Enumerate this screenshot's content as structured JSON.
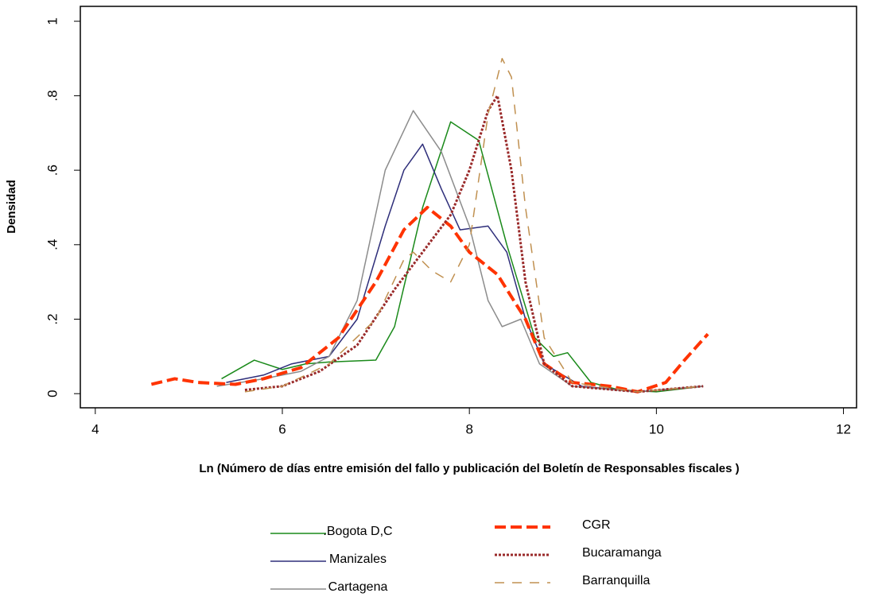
{
  "chart_data": {
    "type": "line",
    "x_label": "Ln (Número de días entre emisión del fallo y publicación del Boletín de Responsables fiscales )",
    "y_label": "Densidad",
    "xlim": [
      3.84,
      12.14
    ],
    "xticks": [
      4,
      6,
      8,
      10,
      12
    ],
    "ylim": [
      -0.038,
      1.04
    ],
    "yticks": [
      0,
      {
        "value": 0.2,
        "label": ".2"
      },
      {
        "value": 0.4,
        "label": ".4"
      },
      {
        "value": 0.6,
        "label": ".6"
      },
      {
        "value": 0.8,
        "label": ".8"
      },
      1
    ],
    "legend": "bottom",
    "series": [
      {
        "name": ".Bogota D,C",
        "color": "#1a8a1a",
        "dash": "solid",
        "width": 1.5,
        "x": [
          5.35,
          5.7,
          6.0,
          6.25,
          6.5,
          7.0,
          7.2,
          7.5,
          7.8,
          8.1,
          8.4,
          8.7,
          8.9,
          9.05,
          9.3,
          9.6,
          10.0,
          10.5
        ],
        "values": [
          0.04,
          0.09,
          0.065,
          0.08,
          0.085,
          0.09,
          0.18,
          0.5,
          0.73,
          0.68,
          0.4,
          0.15,
          0.1,
          0.11,
          0.03,
          0.01,
          0.005,
          0.02
        ]
      },
      {
        "name": "Manizales",
        "color": "#2e2e7a",
        "dash": "solid",
        "width": 1.5,
        "x": [
          5.4,
          5.8,
          6.1,
          6.5,
          6.8,
          7.1,
          7.3,
          7.5,
          7.7,
          7.9,
          8.2,
          8.4,
          8.6,
          8.8,
          9.2,
          9.8,
          10.5
        ],
        "values": [
          0.03,
          0.05,
          0.08,
          0.1,
          0.2,
          0.45,
          0.6,
          0.67,
          0.55,
          0.44,
          0.45,
          0.38,
          0.2,
          0.08,
          0.02,
          0.005,
          0.02
        ]
      },
      {
        "name": "Cartagena",
        "color": "#8c8c8c",
        "dash": "solid",
        "width": 1.5,
        "x": [
          5.3,
          5.8,
          6.2,
          6.5,
          6.8,
          7.1,
          7.4,
          7.7,
          8.0,
          8.2,
          8.35,
          8.55,
          8.75,
          9.1,
          9.8,
          10.5
        ],
        "values": [
          0.02,
          0.04,
          0.06,
          0.1,
          0.25,
          0.6,
          0.76,
          0.65,
          0.45,
          0.25,
          0.18,
          0.2,
          0.08,
          0.02,
          0.005,
          0.02
        ]
      },
      {
        "name": "CGR",
        "color": "#ff3300",
        "dash": "dashed",
        "width": 4,
        "x": [
          4.6,
          4.85,
          5.1,
          5.5,
          5.8,
          6.2,
          6.6,
          7.0,
          7.3,
          7.55,
          7.8,
          8.0,
          8.3,
          8.6,
          8.8,
          9.1,
          9.5,
          9.8,
          10.1,
          10.3,
          10.55
        ],
        "values": [
          0.025,
          0.04,
          0.03,
          0.025,
          0.04,
          0.07,
          0.15,
          0.3,
          0.44,
          0.5,
          0.45,
          0.38,
          0.32,
          0.2,
          0.08,
          0.03,
          0.02,
          0.005,
          0.03,
          0.09,
          0.16
        ]
      },
      {
        "name": "Bucaramanga",
        "color": "#9a2a2a",
        "dash": "dotted",
        "width": 3,
        "x": [
          5.6,
          6.0,
          6.4,
          6.8,
          7.2,
          7.5,
          7.8,
          8.0,
          8.2,
          8.3,
          8.45,
          8.6,
          8.8,
          9.1,
          9.8,
          10.5
        ],
        "values": [
          0.01,
          0.02,
          0.06,
          0.13,
          0.28,
          0.38,
          0.48,
          0.6,
          0.76,
          0.8,
          0.6,
          0.3,
          0.08,
          0.02,
          0.005,
          0.02
        ]
      },
      {
        "name": "Barranquilla",
        "color": "#c09050",
        "dash": "longdash",
        "width": 1.5,
        "x": [
          5.6,
          6.0,
          6.5,
          7.0,
          7.3,
          7.4,
          7.6,
          7.8,
          8.0,
          8.2,
          8.35,
          8.45,
          8.6,
          8.8,
          9.1,
          9.8,
          10.5
        ],
        "values": [
          0.005,
          0.02,
          0.08,
          0.2,
          0.36,
          0.38,
          0.33,
          0.3,
          0.4,
          0.75,
          0.9,
          0.85,
          0.5,
          0.15,
          0.03,
          0.005,
          0.02
        ]
      }
    ]
  }
}
